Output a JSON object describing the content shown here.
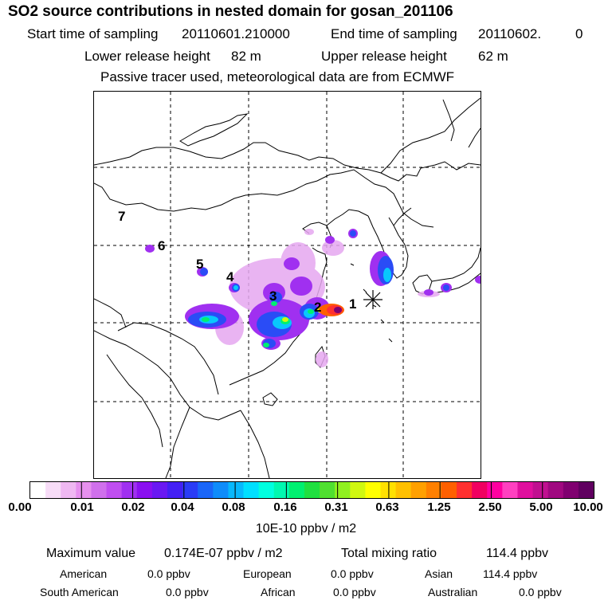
{
  "header": {
    "title": "SO2 source contributions in nested domain for gosan_201106",
    "start_label": "Start time of sampling",
    "start_value": "20110601.210000",
    "end_label": "End time of sampling",
    "end_value": "20110602.",
    "end_suffix": "0",
    "lower_label": "Lower release height",
    "lower_value": "82 m",
    "upper_label": "Upper release height",
    "upper_value": "62 m",
    "note": "Passive tracer used, meteorological data are from ECMWF"
  },
  "map": {
    "markers": [
      {
        "label": "1"
      },
      {
        "label": "2"
      },
      {
        "label": "3"
      },
      {
        "label": "4"
      },
      {
        "label": "5"
      },
      {
        "label": "6"
      },
      {
        "label": "7"
      }
    ]
  },
  "colorbar": {
    "ticks": [
      "0.00",
      "0.01",
      "0.02",
      "0.04",
      "0.08",
      "0.16",
      "0.31",
      "0.63",
      "1.25",
      "2.50",
      "5.00",
      "10.00"
    ],
    "unit": "10E-10 ppbv / m2",
    "colors": [
      "#ffffff",
      "#f7dcf7",
      "#efb8f2",
      "#e690ee",
      "#d070ec",
      "#c04ef0",
      "#a030f0",
      "#8a10f0",
      "#6a18f2",
      "#4420f4",
      "#2a3cf6",
      "#1a66f8",
      "#0f8cfa",
      "#08b8fc",
      "#00e0ff",
      "#00ffe0",
      "#00f8b0",
      "#00f070",
      "#20e040",
      "#50e030",
      "#90f020",
      "#d0f810",
      "#ffff00",
      "#ffe000",
      "#ffc000",
      "#ffa000",
      "#ff8000",
      "#ff6000",
      "#ff3030",
      "#f00060",
      "#ff00a0",
      "#ff40c0",
      "#e0109e",
      "#c01090",
      "#a00880",
      "#800070",
      "#600060"
    ]
  },
  "stats": {
    "max_label": "Maximum value",
    "max_value": "0.174E-07 ppbv / m2",
    "total_label": "Total mixing ratio",
    "total_value": "114.4 ppbv",
    "american_label": "American",
    "american_value": "0.0 ppbv",
    "european_label": "European",
    "european_value": "0.0 ppbv",
    "asian_label": "Asian",
    "asian_value": "114.4 ppbv",
    "samerican_label": "South American",
    "samerican_value": "0.0 ppbv",
    "african_label": "African",
    "african_value": "0.0 ppbv",
    "australian_label": "Australian",
    "australian_value": "0.0 ppbv"
  }
}
